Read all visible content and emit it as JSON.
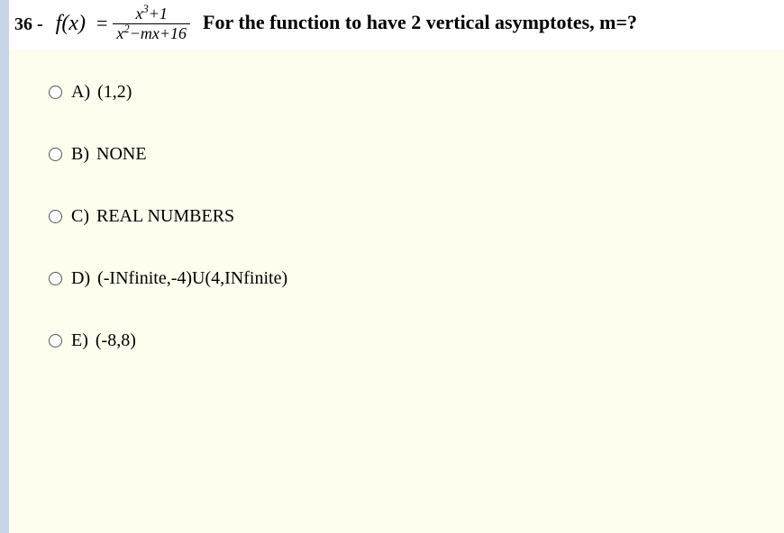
{
  "question": {
    "number": "36 -",
    "formula_fx": "f(x)",
    "formula_eq": "=",
    "formula_numerator": "x³+1",
    "formula_denominator": "x²−mx+16",
    "text": "For the function to have 2 vertical asymptotes, m=?"
  },
  "options": [
    {
      "letter": "A)",
      "text": "(1,2)"
    },
    {
      "letter": "B)",
      "text": "NONE"
    },
    {
      "letter": "C)",
      "text": "REAL NUMBERS"
    },
    {
      "letter": "D)",
      "text": "(-INfinite,-4)U(4,INfinite)"
    },
    {
      "letter": "E)",
      "text": "(-8,8)"
    }
  ],
  "colors": {
    "leftbar": "#c8d4e8",
    "page_bg": "#fdfeee",
    "header_bg": "#ffffff"
  }
}
